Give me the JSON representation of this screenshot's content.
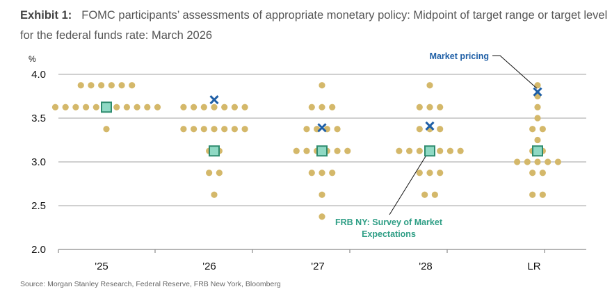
{
  "title": {
    "exhibit": "Exhibit 1:",
    "text": "FOMC participants’ assessments of appropriate monetary policy: Midpoint of target range or target level for the federal funds rate: March 2026"
  },
  "source": "Source: Morgan Stanley Research, Federal Reserve, FRB New York, Bloomberg",
  "colors": {
    "dot": "#D4B86A",
    "market_pricing": "#1F5FA6",
    "survey_fill": "#8FD9C4",
    "survey_stroke": "#2E8B6E",
    "survey_label": "#2E9E85",
    "grid": "#B5B5B5"
  },
  "chart_data": {
    "type": "scatter",
    "title": "FOMC participants’ assessments of appropriate monetary policy",
    "ylabel": "%",
    "xlabel": "",
    "ylim": [
      2.0,
      4.0
    ],
    "yticks": [
      "4.0",
      "3.5",
      "3.0",
      "2.5",
      "2.0"
    ],
    "ytick_values": [
      4.0,
      3.5,
      3.0,
      2.5,
      2.0
    ],
    "grid": true,
    "categories": [
      "'25",
      "'26",
      "'27",
      "'28",
      "LR"
    ],
    "dot_plot": [
      {
        "category": "'25",
        "rows": [
          {
            "value": 3.875,
            "count": 6
          },
          {
            "value": 3.625,
            "count": 11
          },
          {
            "value": 3.375,
            "count": 1
          }
        ]
      },
      {
        "category": "'26",
        "rows": [
          {
            "value": 3.625,
            "count": 7
          },
          {
            "value": 3.375,
            "count": 7
          },
          {
            "value": 3.125,
            "count": 2
          },
          {
            "value": 2.875,
            "count": 2
          },
          {
            "value": 2.625,
            "count": 1
          }
        ]
      },
      {
        "category": "'27",
        "rows": [
          {
            "value": 3.875,
            "count": 1
          },
          {
            "value": 3.625,
            "count": 3
          },
          {
            "value": 3.375,
            "count": 4
          },
          {
            "value": 3.125,
            "count": 6
          },
          {
            "value": 2.875,
            "count": 3
          },
          {
            "value": 2.625,
            "count": 1
          },
          {
            "value": 2.375,
            "count": 1
          }
        ]
      },
      {
        "category": "'28",
        "rows": [
          {
            "value": 3.875,
            "count": 1
          },
          {
            "value": 3.625,
            "count": 3
          },
          {
            "value": 3.375,
            "count": 3
          },
          {
            "value": 3.125,
            "count": 7
          },
          {
            "value": 2.875,
            "count": 3
          },
          {
            "value": 2.625,
            "count": 2
          }
        ]
      },
      {
        "category": "LR",
        "rows": [
          {
            "value": 3.875,
            "count": 1
          },
          {
            "value": 3.75,
            "count": 1
          },
          {
            "value": 3.625,
            "count": 1
          },
          {
            "value": 3.5,
            "count": 1
          },
          {
            "value": 3.375,
            "count": 2
          },
          {
            "value": 3.25,
            "count": 1
          },
          {
            "value": 3.125,
            "count": 2
          },
          {
            "value": 3.0,
            "count": 5
          },
          {
            "value": 2.875,
            "count": 2
          },
          {
            "value": 2.625,
            "count": 2
          }
        ]
      }
    ],
    "series": [
      {
        "name": "Market pricing",
        "marker": "x",
        "values": [
          null,
          3.71,
          3.39,
          3.41,
          3.8
        ]
      },
      {
        "name": "FRB NY: Survey of Market Expectations",
        "marker": "square",
        "values": [
          3.625,
          3.125,
          3.125,
          3.125,
          3.125
        ]
      }
    ],
    "annotations": [
      {
        "text": "Market pricing",
        "points_to": "LR market pricing",
        "placement": "top-right"
      },
      {
        "text_lines": [
          "FRB NY: Survey of Market",
          "Expectations"
        ],
        "points_to": "'28 survey",
        "placement": "bottom-center"
      }
    ]
  }
}
